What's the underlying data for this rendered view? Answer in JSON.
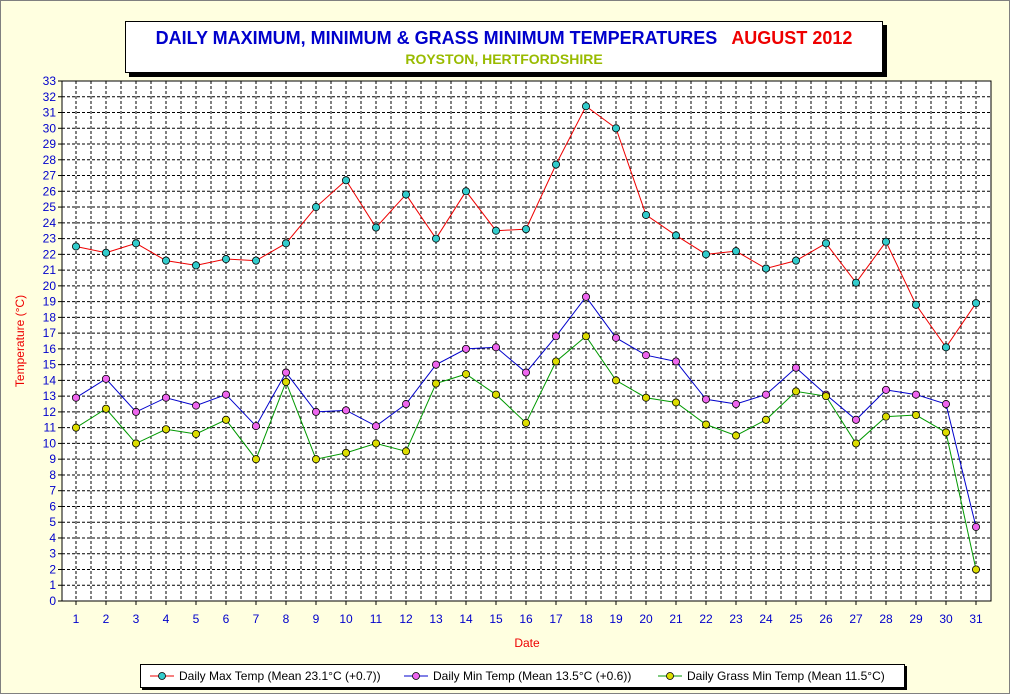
{
  "header": {
    "title": "DAILY MAXIMUM, MINIMUM & GRASS MINIMUM TEMPERATURES",
    "month": "AUGUST 2012",
    "subtitle": "ROYSTON, HERTFORDSHIRE"
  },
  "colors": {
    "background": "#ffffe0",
    "title": "#0000cc",
    "month": "#ee0000",
    "subtitle": "#99bb00",
    "axis_label": "#ee0000",
    "tick_label": "#0000cc"
  },
  "chart_data": {
    "type": "line",
    "xlabel": "Date",
    "ylabel": "Temperature (°C)",
    "x": [
      1,
      2,
      3,
      4,
      5,
      6,
      7,
      8,
      9,
      10,
      11,
      12,
      13,
      14,
      15,
      16,
      17,
      18,
      19,
      20,
      21,
      22,
      23,
      24,
      25,
      26,
      27,
      28,
      29,
      30,
      31
    ],
    "xlim": [
      1,
      31
    ],
    "ylim": [
      0,
      33
    ],
    "y_ticks": [
      0,
      1,
      2,
      3,
      4,
      5,
      6,
      7,
      8,
      9,
      10,
      11,
      12,
      13,
      14,
      15,
      16,
      17,
      18,
      19,
      20,
      21,
      22,
      23,
      24,
      25,
      26,
      27,
      28,
      29,
      30,
      31,
      32,
      33
    ],
    "grid": true,
    "legend_position": "bottom",
    "series": [
      {
        "name": "Daily Max Temp (Mean 23.1°C (+0.7))",
        "line_color": "#ee0000",
        "marker_color": "#33cccc",
        "values": [
          22.5,
          22.1,
          22.7,
          21.6,
          21.3,
          21.7,
          21.6,
          22.7,
          25.0,
          26.7,
          23.7,
          25.8,
          23.0,
          26.0,
          23.5,
          23.6,
          27.7,
          31.4,
          30.0,
          24.5,
          23.2,
          22.0,
          22.2,
          21.1,
          21.6,
          22.7,
          20.2,
          22.8,
          18.8,
          16.1,
          18.9
        ]
      },
      {
        "name": "Daily Min Temp (Mean 13.5°C (+0.6))",
        "line_color": "#0000cc",
        "marker_color": "#ee66ee",
        "values": [
          12.9,
          14.1,
          12.0,
          12.9,
          12.4,
          13.1,
          11.1,
          14.5,
          12.0,
          12.1,
          11.1,
          12.5,
          15.0,
          16.0,
          16.1,
          14.5,
          16.8,
          19.3,
          16.7,
          15.6,
          15.2,
          12.8,
          12.5,
          13.1,
          14.8,
          13.1,
          11.5,
          13.4,
          13.1,
          12.5,
          4.7
        ]
      },
      {
        "name": "Daily Grass Min Temp (Mean 11.5°C)",
        "line_color": "#009900",
        "marker_color": "#dddd00",
        "values": [
          11.0,
          12.2,
          10.0,
          10.9,
          10.6,
          11.5,
          9.0,
          13.9,
          9.0,
          9.4,
          10.0,
          9.5,
          13.8,
          14.4,
          13.1,
          11.3,
          15.2,
          16.8,
          14.0,
          12.9,
          12.6,
          11.2,
          10.5,
          11.5,
          13.3,
          13.0,
          10.0,
          11.7,
          11.8,
          10.7,
          2.0
        ]
      }
    ]
  }
}
